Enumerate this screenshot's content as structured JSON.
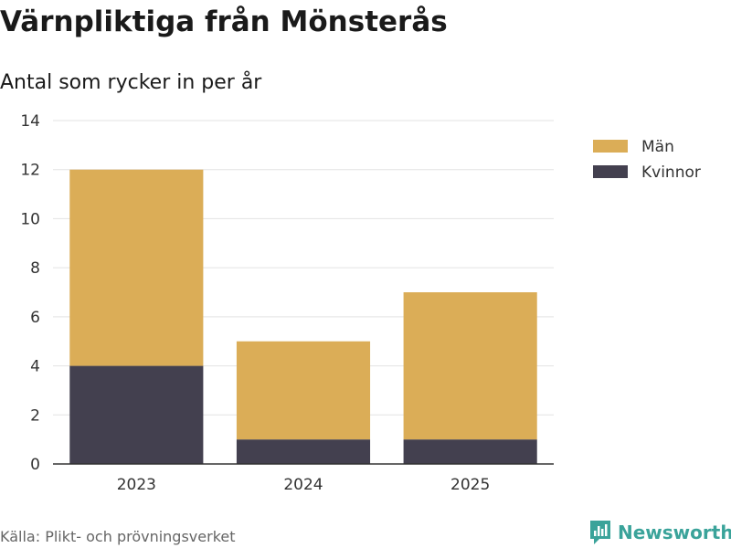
{
  "chart_data": {
    "type": "bar",
    "stacked": true,
    "title": "Värnpliktiga från Mönsterås",
    "subtitle": "Antal som rycker in per år",
    "categories": [
      "2023",
      "2024",
      "2025"
    ],
    "series": [
      {
        "name": "Kvinnor",
        "values": [
          4,
          1,
          1
        ],
        "color": "#43404f"
      },
      {
        "name": "Män",
        "values": [
          8,
          4,
          6
        ],
        "color": "#dbad57"
      }
    ],
    "legend_order": [
      "Män",
      "Kvinnor"
    ],
    "ylim": [
      0,
      14
    ],
    "yticks": [
      0,
      2,
      4,
      6,
      8,
      10,
      12,
      14
    ],
    "grid": true,
    "legend_position": "top-right",
    "xlabel": "",
    "ylabel": ""
  },
  "footer": {
    "source": "Källa: Plikt- och prövningsverket",
    "brand": "Newsworthy",
    "brand_color": "#3aa39a"
  }
}
